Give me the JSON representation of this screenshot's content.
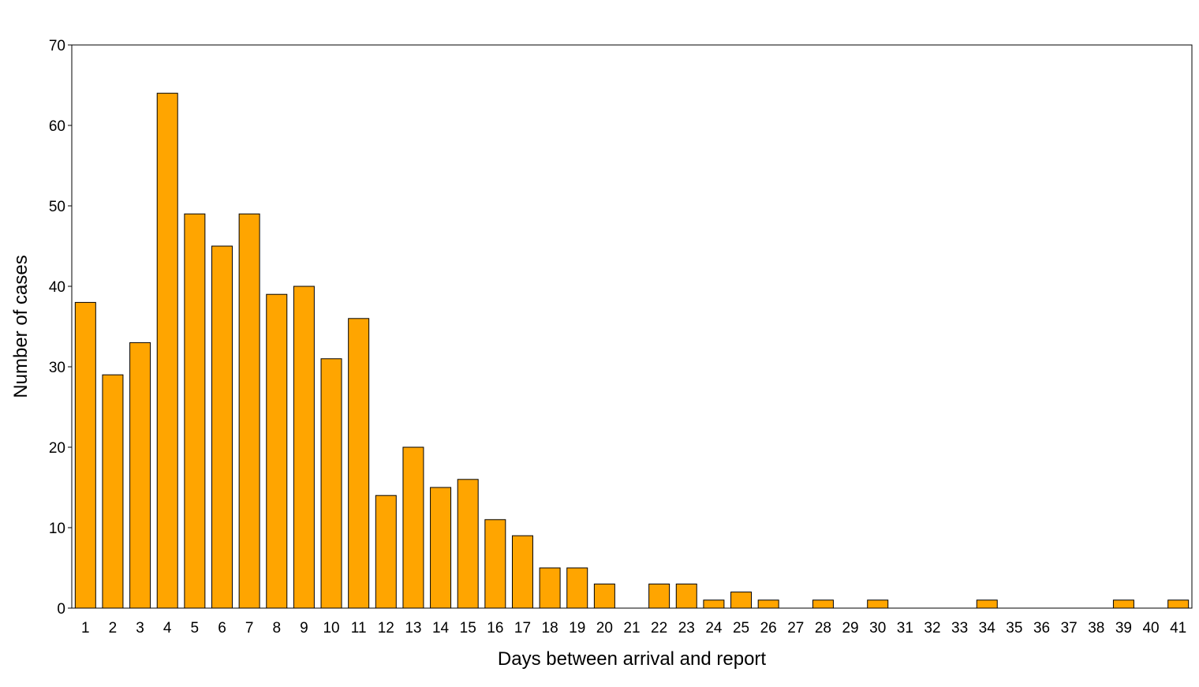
{
  "chart_data": {
    "type": "bar",
    "xlabel": "Days between arrival and report",
    "ylabel": "Number of cases",
    "ylim": [
      0,
      70
    ],
    "yticks": [
      0,
      10,
      20,
      30,
      40,
      50,
      60,
      70
    ],
    "grid": false,
    "legend": false,
    "bar_color": "#FFA500",
    "bar_edge_color": "#000000",
    "categories": [
      "1",
      "2",
      "3",
      "4",
      "5",
      "6",
      "7",
      "8",
      "9",
      "10",
      "11",
      "12",
      "13",
      "14",
      "15",
      "16",
      "17",
      "18",
      "19",
      "20",
      "21",
      "22",
      "23",
      "24",
      "25",
      "26",
      "27",
      "28",
      "29",
      "30",
      "31",
      "32",
      "33",
      "34",
      "35",
      "36",
      "37",
      "38",
      "39",
      "40",
      "41"
    ],
    "values": [
      38,
      29,
      33,
      64,
      49,
      45,
      49,
      39,
      40,
      31,
      36,
      14,
      20,
      15,
      16,
      11,
      9,
      5,
      5,
      3,
      0,
      3,
      3,
      1,
      2,
      1,
      0,
      1,
      0,
      1,
      0,
      0,
      0,
      1,
      0,
      0,
      0,
      0,
      1,
      0,
      1
    ]
  }
}
